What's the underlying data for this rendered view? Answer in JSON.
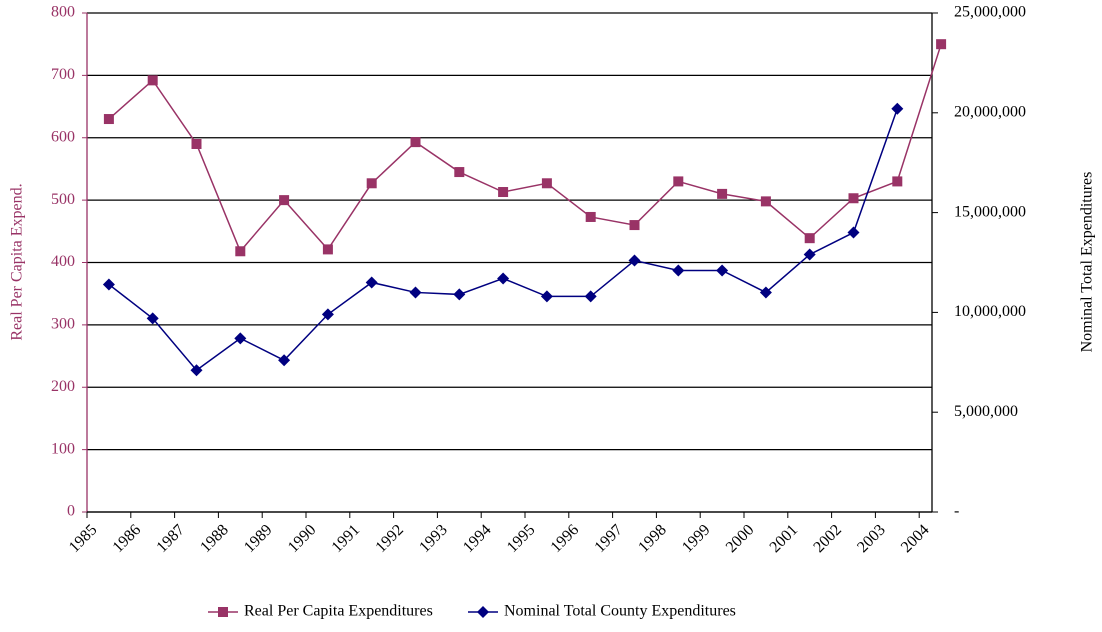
{
  "chart_data": {
    "type": "line",
    "categories": [
      "1985",
      "1986",
      "1987",
      "1988",
      "1989",
      "1990",
      "1991",
      "1992",
      "1993",
      "1994",
      "1995",
      "1996",
      "1997",
      "1998",
      "1999",
      "2000",
      "2001",
      "2002",
      "2003",
      "2004"
    ],
    "y_label": "Real Per Capita Expend.",
    "y2_label": "Nominal Total Expenditures",
    "ylim": [
      0,
      800
    ],
    "yticks": [
      0,
      100,
      200,
      300,
      400,
      500,
      600,
      700,
      800
    ],
    "y2lim": [
      0,
      25000000
    ],
    "y2ticks": [
      {
        "value": 0,
        "label": "-"
      },
      {
        "value": 5000000,
        "label": "5,000,000"
      },
      {
        "value": 10000000,
        "label": "10,000,000"
      },
      {
        "value": 15000000,
        "label": "15,000,000"
      },
      {
        "value": 20000000,
        "label": "20,000,000"
      },
      {
        "value": 25000000,
        "label": "25,000,000"
      }
    ],
    "grid": true,
    "legend": "bottom",
    "series": [
      {
        "name": "Real Per Capita Expenditures",
        "color": "#993366",
        "marker": "square",
        "values": [
          630,
          692,
          590,
          418,
          500,
          421,
          527,
          593,
          545,
          513,
          527,
          473,
          460,
          530,
          510,
          498,
          439,
          503,
          530,
          750
        ]
      },
      {
        "name": "Nominal Total County Expenditures",
        "color": "#000080",
        "marker": "diamond",
        "axis": "y2",
        "values": [
          11400000,
          9700000,
          7100000,
          8700000,
          7600000,
          9900000,
          11500000,
          11000000,
          10900000,
          11700000,
          10800000,
          10800000,
          12600000,
          12100000,
          12100000,
          11000000,
          12900000,
          14000000,
          20200000,
          null
        ]
      }
    ]
  }
}
